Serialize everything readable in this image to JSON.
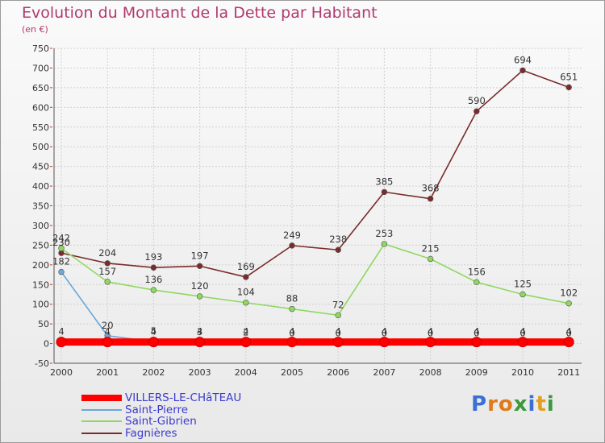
{
  "title": "Evolution du Montant de la Dette par Habitant",
  "subtitle": "(en €)",
  "logo": {
    "letters": [
      "P",
      "r",
      "o",
      "x",
      "i",
      "t",
      "i"
    ],
    "colors": [
      "#3a6fd8",
      "#e07a1a",
      "#e07a1a",
      "#3a9a3a",
      "#3a6fd8",
      "#e0a020",
      "#3a9a3a"
    ]
  },
  "chart_data": {
    "type": "line",
    "x": [
      "2000",
      "2001",
      "2002",
      "2003",
      "2004",
      "2005",
      "2006",
      "2007",
      "2008",
      "2009",
      "2010",
      "2011"
    ],
    "ylim": [
      -50,
      750
    ],
    "yticks": [
      "750",
      "700",
      "650",
      "600",
      "550",
      "500",
      "450",
      "400",
      "350",
      "300",
      "250",
      "200",
      "150",
      "100",
      "50",
      "0",
      "-50"
    ],
    "grid": true,
    "legend_position": "bottom-left",
    "series": [
      {
        "name": "VILLERS-LE-CHâTEAU",
        "color": "#ff0000",
        "values": [
          4,
          4,
          4,
          4,
          4,
          4,
          4,
          4,
          4,
          4,
          4,
          4
        ],
        "labels": [
          "4",
          "4",
          "4",
          "4",
          "4",
          "4",
          "4",
          "4",
          "4",
          "4",
          "4",
          "4"
        ]
      },
      {
        "name": "Saint-Pierre",
        "color": "#6aa8d8",
        "values": [
          182,
          20,
          5,
          3,
          2,
          0,
          0,
          0,
          0,
          0,
          0,
          0
        ],
        "labels": [
          "182",
          "20",
          "5",
          "3",
          "2",
          "0",
          "0",
          "0",
          "0",
          "0",
          "0",
          "0"
        ]
      },
      {
        "name": "Saint-Gibrien",
        "color": "#8fd860",
        "values": [
          242,
          157,
          136,
          120,
          104,
          88,
          72,
          253,
          215,
          156,
          125,
          102
        ],
        "labels": [
          "242",
          "157",
          "136",
          "120",
          "104",
          "88",
          "72",
          "253",
          "215",
          "156",
          "125",
          "102"
        ]
      },
      {
        "name": "Fagnières",
        "color": "#7a2c2c",
        "values": [
          230,
          204,
          193,
          197,
          169,
          249,
          238,
          385,
          368,
          590,
          694,
          651
        ],
        "labels": [
          "230",
          "204",
          "193",
          "197",
          "169",
          "249",
          "238",
          "385",
          "368",
          "590",
          "694",
          "651"
        ]
      }
    ]
  }
}
